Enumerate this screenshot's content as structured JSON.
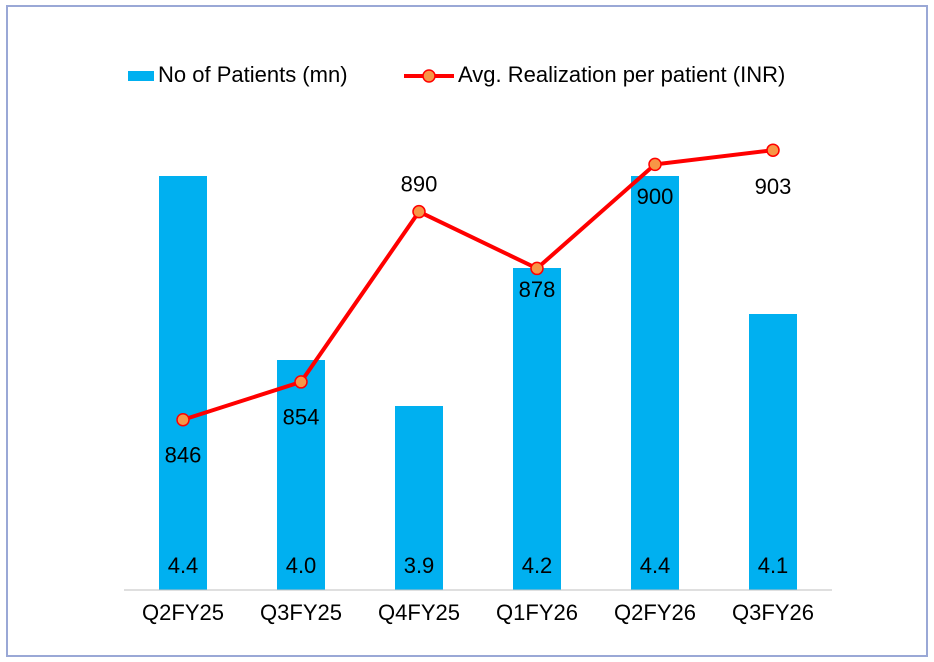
{
  "chart_data": {
    "type": "bar_line",
    "categories": [
      "Q2FY25",
      "Q3FY25",
      "Q4FY25",
      "Q1FY26",
      "Q2FY26",
      "Q3FY26"
    ],
    "series": [
      {
        "name": "No of Patients (mn)",
        "color": "#00b0f0",
        "type": "bar",
        "values": [
          4.4,
          4.0,
          3.9,
          4.2,
          4.4,
          4.1
        ],
        "value_labels": [
          "4.4",
          "4.0",
          "3.9",
          "4.2",
          "4.4",
          "4.1"
        ]
      },
      {
        "name": "Avg. Realization per patient (INR)",
        "color": "#ff0000",
        "marker_color": "#f79646",
        "type": "line",
        "axis": "y2",
        "values": [
          846,
          854,
          890,
          878,
          900,
          903
        ]
      }
    ],
    "ylim": [
      3.5,
      4.6
    ],
    "y2lim": [
      810,
      917
    ],
    "legend": "top"
  }
}
